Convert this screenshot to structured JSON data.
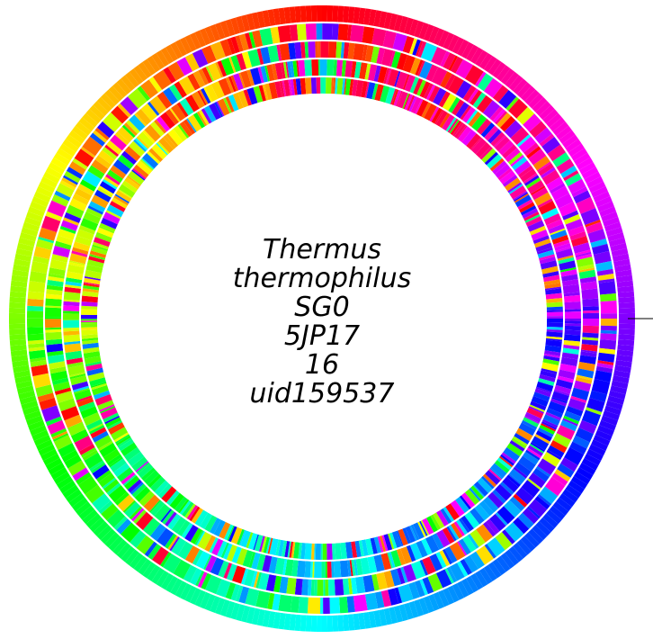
{
  "genome_label": {
    "lines": [
      "Thermus",
      "thermophilus",
      "SG0",
      "5JP17",
      "16",
      "uid159537"
    ]
  },
  "ring_count": 5,
  "palette": [
    "#ff0000",
    "#ff8000",
    "#ffff00",
    "#80ff00",
    "#00ff00",
    "#00ff80",
    "#00ffff",
    "#0080ff",
    "#0000ff",
    "#8000ff",
    "#ff00ff",
    "#ff0080"
  ]
}
